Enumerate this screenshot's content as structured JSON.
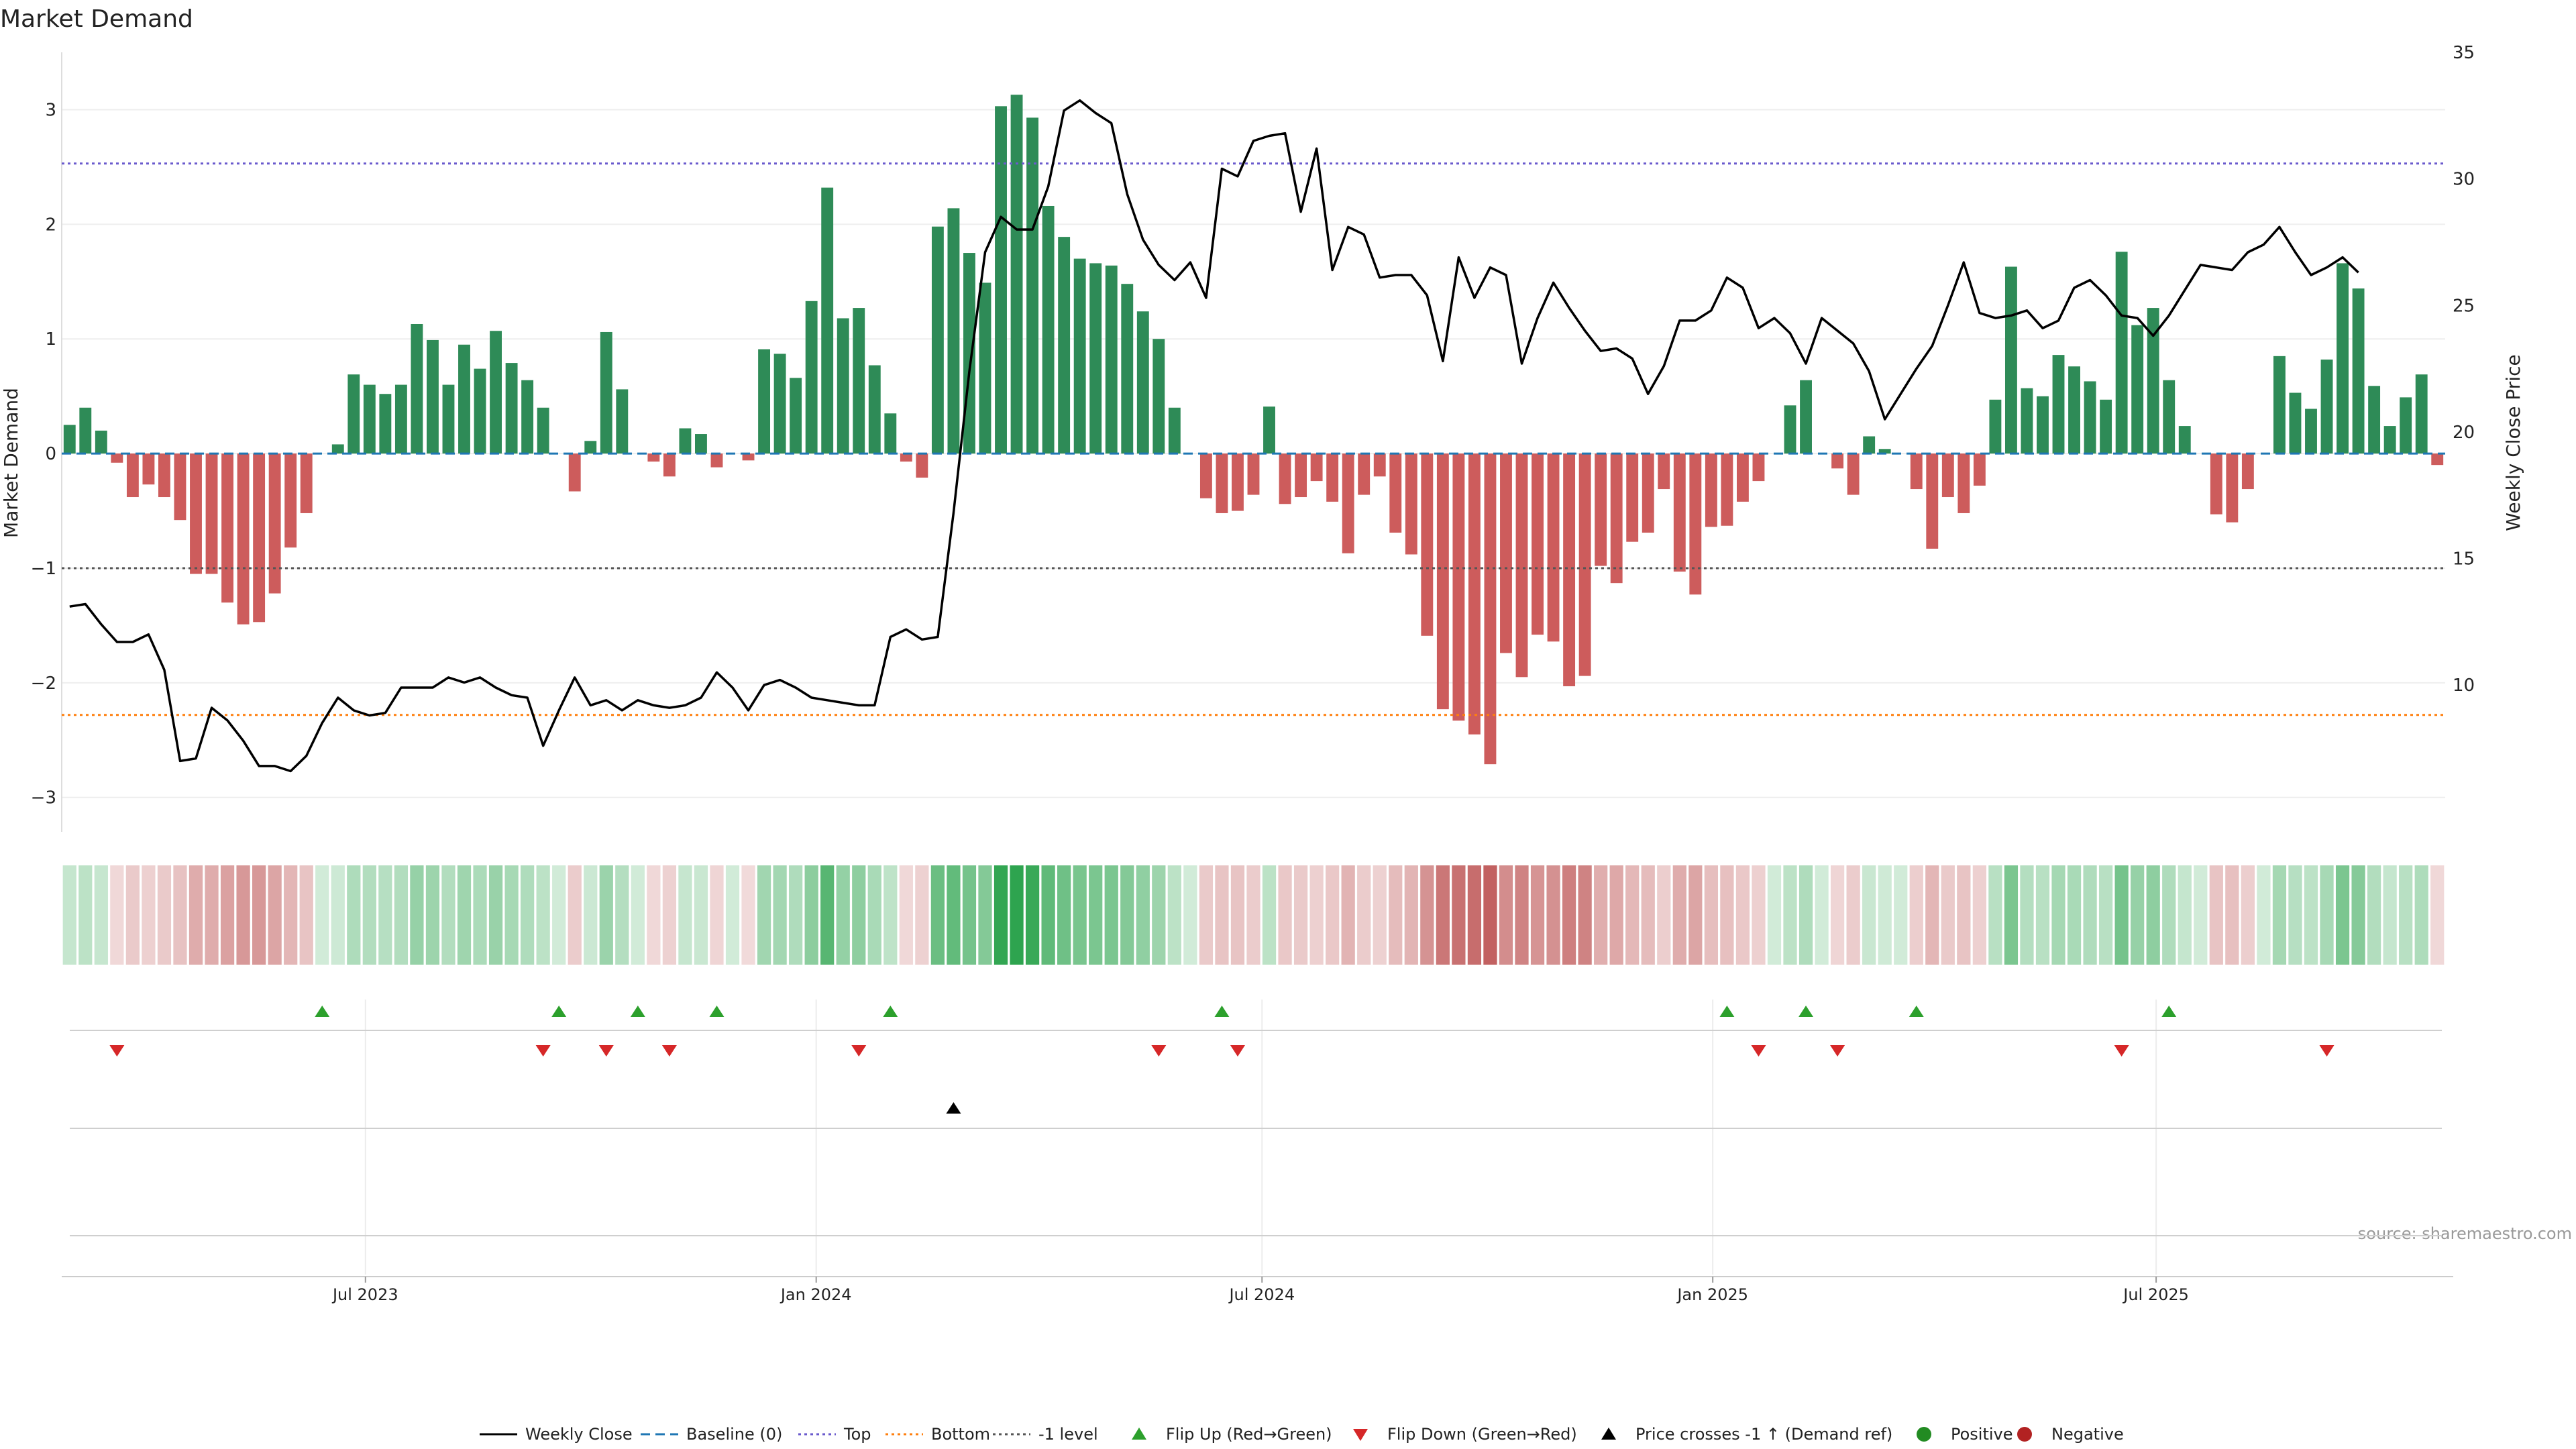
{
  "chart_data": {
    "type": "bar",
    "title": "Market Demand",
    "ylabel": "Market Demand",
    "y2label": "Weekly Close Price",
    "ylim": [
      -3.3,
      3.5
    ],
    "y2lim": [
      4.2,
      35
    ],
    "yticks": [
      -3,
      -2,
      -1,
      0,
      1,
      2,
      3
    ],
    "y2ticks": [
      10,
      15,
      20,
      25,
      30,
      35
    ],
    "reference_lines": {
      "baseline": 0,
      "top": 2.53,
      "bottom": -2.28,
      "minus_one": -1
    },
    "x_start": "2023-02-27",
    "x_end": "2025-10-27",
    "x_ticks": [
      {
        "label": "Jul 2023",
        "date": "2023-07-01"
      },
      {
        "label": "Jan 2024",
        "date": "2024-01-01"
      },
      {
        "label": "Jul 2024",
        "date": "2024-07-01"
      },
      {
        "label": "Jan 2025",
        "date": "2025-01-01"
      },
      {
        "label": "Jul 2025",
        "date": "2025-07-01"
      }
    ],
    "colors": {
      "positive": "#2e8b57",
      "negative": "#cd5c5c",
      "price": "#000000",
      "baseline": "#1f77b4",
      "top": "#6a5acd",
      "bottom": "#ff7f0e",
      "minus_one": "#555555",
      "flip_up": "#2ca02c",
      "flip_down": "#d62728"
    },
    "series": [
      {
        "name": "Market Demand",
        "values": [
          0.25,
          0.4,
          0.2,
          -0.08,
          -0.38,
          -0.27,
          -0.38,
          -0.58,
          -1.05,
          -1.05,
          -1.3,
          -1.49,
          -1.47,
          -1.22,
          -0.82,
          -0.52,
          0,
          0.08,
          0.69,
          0.6,
          0.52,
          0.6,
          1.13,
          0.99,
          0.6,
          0.95,
          0.74,
          1.07,
          0.79,
          0.64,
          0.4,
          0,
          -0.33,
          0.11,
          1.06,
          0.56,
          0,
          -0.07,
          -0.2,
          0.22,
          0.17,
          -0.12,
          0,
          -0.06,
          0.91,
          0.87,
          0.66,
          1.33,
          2.32,
          1.18,
          1.27,
          0.77,
          0.35,
          -0.07,
          -0.21,
          1.98,
          2.14,
          1.75,
          1.49,
          3.03,
          3.13,
          2.93,
          2.16,
          1.89,
          1.7,
          1.66,
          1.64,
          1.48,
          1.24,
          1.0,
          0.4,
          0,
          -0.39,
          -0.52,
          -0.5,
          -0.36,
          0.41,
          -0.44,
          -0.38,
          -0.24,
          -0.42,
          -0.87,
          -0.36,
          -0.2,
          -0.69,
          -0.88,
          -1.59,
          -2.23,
          -2.33,
          -2.45,
          -2.71,
          -1.74,
          -1.95,
          -1.58,
          -1.64,
          -2.03,
          -1.94,
          -0.98,
          -1.13,
          -0.77,
          -0.69,
          -0.31,
          -1.03,
          -1.23,
          -0.64,
          -0.63,
          -0.42,
          -0.24,
          0,
          0.42,
          0.64,
          0,
          -0.13,
          -0.36,
          0.15,
          0.04,
          0,
          -0.31,
          -0.83,
          -0.38,
          -0.52,
          -0.28,
          0.47,
          1.63,
          0.57,
          0.5,
          0.86,
          0.76,
          0.63,
          0.47,
          1.76,
          1.12,
          1.27,
          0.64,
          0.24,
          0,
          -0.53,
          -0.6,
          -0.31,
          0,
          0.85,
          0.53,
          0.39,
          0.82,
          1.66,
          1.44,
          0.59,
          0.24,
          0.49,
          0.69,
          -0.1
        ]
      },
      {
        "name": "Weekly Close",
        "values": [
          13.1,
          13.2,
          12.4,
          11.7,
          11.7,
          12.0,
          10.6,
          7.0,
          7.1,
          9.1,
          8.6,
          7.8,
          6.8,
          6.8,
          6.6,
          7.2,
          8.5,
          9.5,
          9.0,
          8.8,
          8.9,
          9.9,
          9.9,
          9.9,
          10.3,
          10.1,
          10.3,
          9.9,
          9.6,
          9.5,
          7.6,
          9.0,
          10.3,
          9.2,
          9.4,
          9.0,
          9.4,
          9.2,
          9.1,
          9.2,
          9.5,
          10.5,
          9.9,
          9.0,
          10.0,
          10.2,
          9.9,
          9.5,
          9.4,
          9.3,
          9.2,
          9.2,
          11.9,
          12.2,
          11.8,
          11.9,
          16.8,
          22.4,
          27.1,
          28.5,
          28.0,
          28.0,
          29.7,
          32.7,
          33.1,
          32.6,
          32.2,
          29.4,
          27.6,
          26.6,
          26.0,
          26.7,
          25.3,
          30.4,
          30.1,
          31.5,
          31.7,
          31.8,
          28.7,
          31.2,
          26.4,
          28.1,
          27.8,
          26.1,
          26.2,
          26.2,
          25.4,
          22.8,
          26.9,
          25.3,
          26.5,
          26.2,
          22.7,
          24.5,
          25.9,
          24.9,
          24.0,
          23.2,
          23.3,
          22.9,
          21.5,
          22.6,
          24.4,
          24.4,
          24.8,
          26.1,
          25.7,
          24.1,
          24.5,
          23.9,
          22.7,
          24.5,
          24.0,
          23.5,
          22.4,
          20.5,
          21.5,
          22.5,
          23.4,
          25.0,
          26.7,
          24.7,
          24.5,
          24.6,
          24.8,
          24.1,
          24.4,
          25.7,
          26.0,
          25.4,
          24.6,
          24.5,
          23.8,
          24.6,
          25.6,
          26.6,
          26.5,
          26.4,
          27.1,
          27.4,
          28.1,
          27.1,
          26.2,
          26.5,
          26.9,
          26.3
        ]
      }
    ],
    "heat_strip_label": "",
    "flip_up_weeks": [
      16,
      31,
      36,
      41,
      52,
      73,
      105,
      110,
      117,
      133
    ],
    "flip_down_weeks": [
      3,
      30,
      34,
      38,
      50,
      69,
      74,
      107,
      112,
      130,
      143
    ],
    "price_cross_weeks": [
      56
    ],
    "legend": [
      "Weekly Close",
      "Baseline (0)",
      "Top",
      "Bottom",
      "-1 level",
      "Flip Up (Red→Green)",
      "Flip Down (Green→Red)",
      "Price crosses -1 ↑ (Demand ref)",
      "Positive",
      "Negative"
    ],
    "legend_position": "bottom-center",
    "annotation": "source: sharemaestro.com"
  }
}
